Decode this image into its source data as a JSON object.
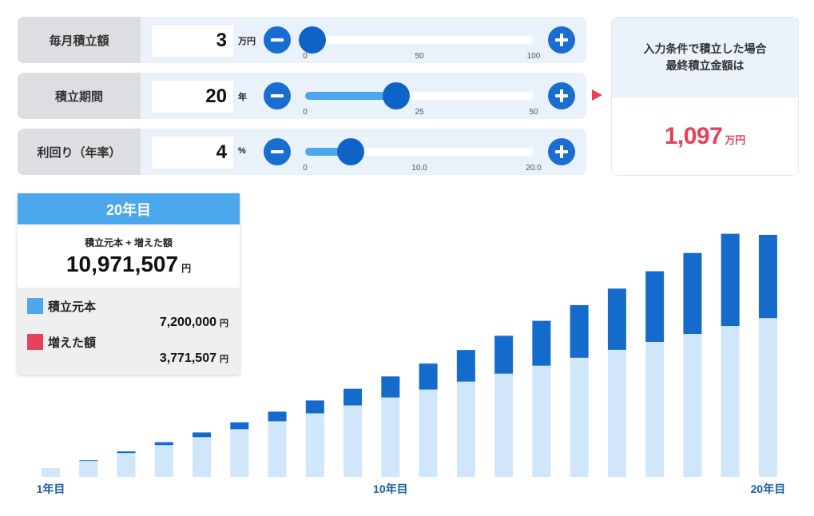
{
  "inputs": [
    {
      "label": "毎月積立額",
      "value": "3",
      "unit": "万円",
      "slider_min": 0,
      "slider_max": 100,
      "slider_value": 3,
      "ticks": [
        "0",
        "50",
        "100"
      ]
    },
    {
      "label": "積立期間",
      "value": "20",
      "unit": "年",
      "slider_min": 0,
      "slider_max": 50,
      "slider_value": 20,
      "ticks": [
        "0",
        "25",
        "50"
      ]
    },
    {
      "label": "利回り（年率）",
      "value": "4",
      "unit": "%",
      "slider_min": 0,
      "slider_max": 20,
      "slider_value": 4,
      "ticks": [
        "0",
        "10.0",
        "20.0"
      ]
    }
  ],
  "result": {
    "line1": "入力条件で積立した場合",
    "line2": "最終積立金額は",
    "value": "1,097",
    "unit": "万円"
  },
  "summary": {
    "year_title": "20年目",
    "caption": "積立元本 + 増えた額",
    "total": "10,971,507",
    "total_unit": "円",
    "principal_label": "積立元本",
    "principal_value": "7,200,000",
    "principal_unit": "円",
    "gain_label": "増えた額",
    "gain_value": "3,771,507",
    "gain_unit": "円"
  },
  "colors": {
    "principal": "#cfe6fb",
    "gain": "#156bcc",
    "legend_principal": "#4da7ec",
    "legend_gain": "#e8405a",
    "accent": "#e8405a"
  },
  "chart_data": {
    "type": "bar",
    "stacked": true,
    "categories": [
      "1年目",
      "2年目",
      "3年目",
      "4年目",
      "5年目",
      "6年目",
      "7年目",
      "8年目",
      "9年目",
      "10年目",
      "11年目",
      "12年目",
      "13年目",
      "14年目",
      "15年目",
      "16年目",
      "17年目",
      "18年目",
      "19年目",
      "20年目"
    ],
    "x_tick_labels": [
      "1年目",
      "10年目",
      "20年目"
    ],
    "series": [
      {
        "name": "積立元本",
        "values": [
          360000,
          720000,
          1080000,
          1440000,
          1800000,
          2160000,
          2520000,
          2880000,
          3240000,
          3600000,
          3960000,
          4320000,
          4680000,
          5040000,
          5400000,
          5760000,
          6120000,
          6480000,
          6840000,
          7200000
        ]
      },
      {
        "name": "増えた額",
        "values": [
          7800,
          31900,
          73400,
          133400,
          213200,
          314000,
          436800,
          583300,
          754600,
          952100,
          1177200,
          1431600,
          1716600,
          2034100,
          2386000,
          2774500,
          3201400,
          3669400,
          4180700,
          3771507
        ]
      }
    ],
    "ylim": [
      0,
      11000000
    ]
  }
}
